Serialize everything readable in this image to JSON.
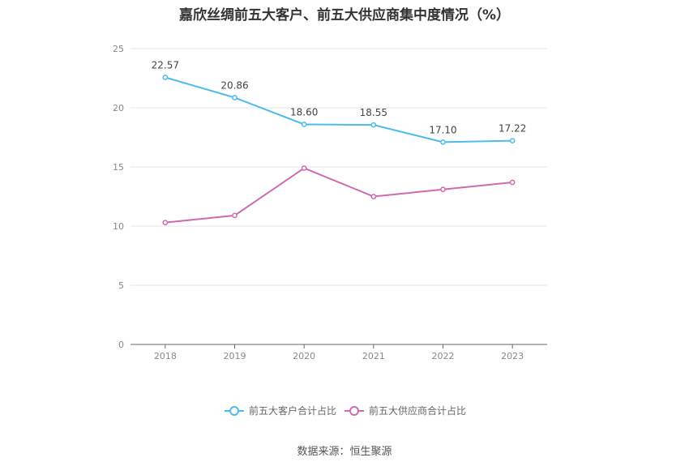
{
  "chart_data": {
    "type": "line",
    "title": "嘉欣丝绸前五大客户、前五大供应商集中度情况（%）",
    "categories": [
      "2018",
      "2019",
      "2020",
      "2021",
      "2022",
      "2023"
    ],
    "series": [
      {
        "name": "前五大客户合计占比",
        "color": "#4dbbeb",
        "values": [
          22.57,
          20.86,
          18.6,
          18.55,
          17.1,
          17.22
        ],
        "labels": [
          "22.57",
          "20.86",
          "18.60",
          "18.55",
          "17.10",
          "17.22"
        ]
      },
      {
        "name": "前五大供应商合计占比",
        "color": "#cf6aae",
        "values": [
          10.3,
          10.9,
          14.9,
          12.5,
          13.1,
          13.7
        ]
      }
    ],
    "yticks": [
      "0",
      "5",
      "10",
      "15",
      "20",
      "25"
    ],
    "ylim": [
      0,
      25
    ],
    "grid": true,
    "legend": "bottom-center"
  },
  "source": "数据来源：恒生聚源"
}
